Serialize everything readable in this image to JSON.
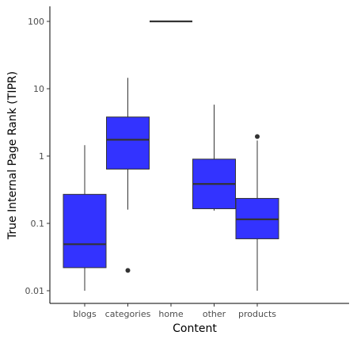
{
  "chart_data": {
    "type": "boxplot",
    "xlabel": "Content",
    "ylabel": "True Internal Page Rank (TIPR)",
    "y_scale": "log10",
    "ylim": [
      0.0075,
      150
    ],
    "y_ticks": [
      0.01,
      0.1,
      1,
      10,
      100
    ],
    "y_tick_labels": [
      "0.01",
      "0.1",
      "1",
      "10",
      "100"
    ],
    "grid": false,
    "legend": "none",
    "box_color": "#3333ff",
    "line_color": "#333333",
    "categories": [
      "blogs",
      "categories",
      "home",
      "other",
      "products"
    ],
    "boxes": [
      {
        "category": "blogs",
        "whisker_low": 0.01,
        "q1": 0.022,
        "median": 0.049,
        "q3": 0.27,
        "whisker_high": 1.45,
        "outliers": []
      },
      {
        "category": "categories",
        "whisker_low": 0.16,
        "q1": 0.64,
        "median": 1.75,
        "q3": 3.8,
        "whisker_high": 14.5,
        "outliers": [
          0.02
        ]
      },
      {
        "category": "home",
        "whisker_low": 100,
        "q1": 100,
        "median": 100,
        "q3": 100,
        "whisker_high": 100,
        "outliers": []
      },
      {
        "category": "other",
        "whisker_low": 0.155,
        "q1": 0.165,
        "median": 0.385,
        "q3": 0.9,
        "whisker_high": 5.8,
        "outliers": []
      },
      {
        "category": "products",
        "whisker_low": 0.01,
        "q1": 0.059,
        "median": 0.115,
        "q3": 0.235,
        "whisker_high": 1.7,
        "outliers": [
          1.95
        ]
      }
    ]
  }
}
